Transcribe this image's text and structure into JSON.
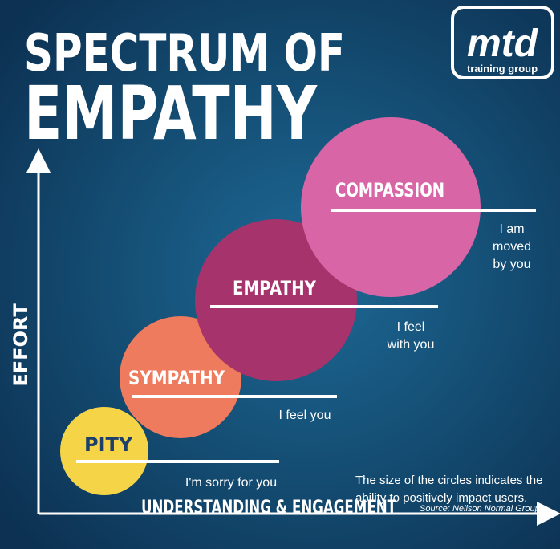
{
  "header": {
    "title_lines": [
      "SPECTRUM OF",
      "EMPATHY"
    ]
  },
  "logo": {
    "name": "mtd",
    "tagline": "training group"
  },
  "axes": {
    "y_label": "EFFORT",
    "x_label": "UNDERSTANDING & ENGAGEMENT"
  },
  "stages": [
    {
      "label": "PITY",
      "description": [
        "I'm sorry for you"
      ]
    },
    {
      "label": "SYMPATHY",
      "description": [
        "I feel you"
      ]
    },
    {
      "label": "EMPATHY",
      "description": [
        "I feel",
        "with you"
      ]
    },
    {
      "label": "COMPASSION",
      "description": [
        "I am",
        "moved",
        "by you"
      ]
    }
  ],
  "note": [
    "The size of the circles indicates the",
    "ability to positively impact users."
  ],
  "source": "Source: Neilson Normal Group"
}
